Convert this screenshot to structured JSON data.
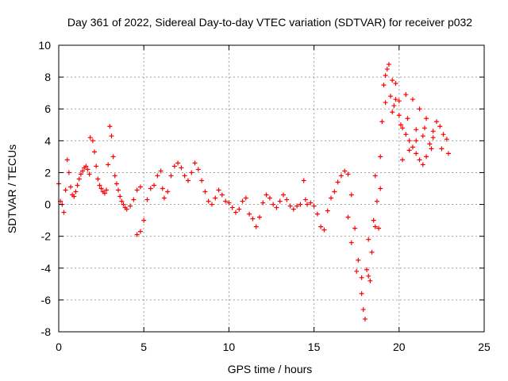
{
  "chart_data": {
    "type": "scatter",
    "title": "Day 361 of 2022, Sidereal Day-to-day VTEC variation (SDTVAR) for receiver p032",
    "xlabel": "GPS time / hours",
    "ylabel": "SDTVAR / TECUs",
    "xlim": [
      0,
      25
    ],
    "ylim": [
      -8,
      10
    ],
    "xticks": [
      "0",
      "5",
      "10",
      "15",
      "20",
      "25"
    ],
    "yticks": [
      "-8",
      "-6",
      "-4",
      "-2",
      "0",
      "2",
      "4",
      "6",
      "8",
      "10"
    ],
    "grid": true,
    "marker": "plus",
    "series": [
      {
        "name": "SDTVAR",
        "color": "#ff0000",
        "points": [
          [
            0.0,
            1.3
          ],
          [
            0.1,
            0.2
          ],
          [
            0.2,
            0.0
          ],
          [
            0.3,
            -0.5
          ],
          [
            0.4,
            0.9
          ],
          [
            0.5,
            2.8
          ],
          [
            0.6,
            2.0
          ],
          [
            0.7,
            1.1
          ],
          [
            0.8,
            0.6
          ],
          [
            0.9,
            0.5
          ],
          [
            1.0,
            0.8
          ],
          [
            1.1,
            1.2
          ],
          [
            1.2,
            1.6
          ],
          [
            1.3,
            1.9
          ],
          [
            1.4,
            2.1
          ],
          [
            1.5,
            2.3
          ],
          [
            1.6,
            2.4
          ],
          [
            1.7,
            2.2
          ],
          [
            1.8,
            1.9
          ],
          [
            1.85,
            4.2
          ],
          [
            2.0,
            4.0
          ],
          [
            2.1,
            3.3
          ],
          [
            2.2,
            2.4
          ],
          [
            2.3,
            1.6
          ],
          [
            2.4,
            1.2
          ],
          [
            2.5,
            1.0
          ],
          [
            2.6,
            0.8
          ],
          [
            2.7,
            0.7
          ],
          [
            2.8,
            0.9
          ],
          [
            2.9,
            2.5
          ],
          [
            3.0,
            4.9
          ],
          [
            3.1,
            4.3
          ],
          [
            3.2,
            3.0
          ],
          [
            3.3,
            1.8
          ],
          [
            3.4,
            1.3
          ],
          [
            3.5,
            0.9
          ],
          [
            3.6,
            0.5
          ],
          [
            3.7,
            0.2
          ],
          [
            3.8,
            0.0
          ],
          [
            3.9,
            -0.2
          ],
          [
            4.0,
            -0.3
          ],
          [
            4.2,
            -0.1
          ],
          [
            4.4,
            0.3
          ],
          [
            4.6,
            0.9
          ],
          [
            4.8,
            1.1
          ],
          [
            4.6,
            -1.9
          ],
          [
            4.8,
            -1.7
          ],
          [
            5.0,
            -1.0
          ],
          [
            5.2,
            0.3
          ],
          [
            5.4,
            1.0
          ],
          [
            5.6,
            1.2
          ],
          [
            5.8,
            1.8
          ],
          [
            6.0,
            2.1
          ],
          [
            6.1,
            1.0
          ],
          [
            6.2,
            0.4
          ],
          [
            6.4,
            0.8
          ],
          [
            6.6,
            1.8
          ],
          [
            6.8,
            2.4
          ],
          [
            7.0,
            2.6
          ],
          [
            7.2,
            2.3
          ],
          [
            7.4,
            1.8
          ],
          [
            7.6,
            1.5
          ],
          [
            7.8,
            2.0
          ],
          [
            8.0,
            2.6
          ],
          [
            8.2,
            2.2
          ],
          [
            8.4,
            1.5
          ],
          [
            8.6,
            0.8
          ],
          [
            8.8,
            0.2
          ],
          [
            9.0,
            0.0
          ],
          [
            9.2,
            0.4
          ],
          [
            9.4,
            0.9
          ],
          [
            9.6,
            0.6
          ],
          [
            9.8,
            0.2
          ],
          [
            10.0,
            0.1
          ],
          [
            10.2,
            -0.2
          ],
          [
            10.4,
            -0.5
          ],
          [
            10.6,
            -0.3
          ],
          [
            10.8,
            0.2
          ],
          [
            11.0,
            0.4
          ],
          [
            11.2,
            -0.6
          ],
          [
            11.4,
            -0.9
          ],
          [
            11.6,
            -1.4
          ],
          [
            11.8,
            -0.8
          ],
          [
            12.0,
            0.1
          ],
          [
            12.2,
            0.6
          ],
          [
            12.4,
            0.4
          ],
          [
            12.6,
            0.0
          ],
          [
            12.8,
            -0.2
          ],
          [
            13.0,
            0.2
          ],
          [
            13.2,
            0.6
          ],
          [
            13.4,
            0.3
          ],
          [
            13.6,
            -0.1
          ],
          [
            13.8,
            -0.3
          ],
          [
            14.0,
            -0.1
          ],
          [
            14.2,
            0.0
          ],
          [
            14.4,
            1.5
          ],
          [
            14.5,
            0.3
          ],
          [
            14.6,
            0.0
          ],
          [
            14.8,
            0.1
          ],
          [
            15.0,
            -0.1
          ],
          [
            15.2,
            -0.6
          ],
          [
            15.4,
            -1.4
          ],
          [
            15.6,
            -1.6
          ],
          [
            15.8,
            -0.4
          ],
          [
            16.0,
            0.4
          ],
          [
            16.2,
            0.8
          ],
          [
            16.4,
            1.4
          ],
          [
            16.6,
            1.8
          ],
          [
            16.8,
            2.1
          ],
          [
            17.0,
            1.9
          ],
          [
            17.2,
            0.6
          ],
          [
            17.4,
            -1.5
          ],
          [
            17.6,
            -3.5
          ],
          [
            17.8,
            -5.6
          ],
          [
            17.9,
            -6.6
          ],
          [
            18.0,
            -7.2
          ],
          [
            18.1,
            -4.1
          ],
          [
            18.2,
            -4.5
          ],
          [
            18.3,
            -4.8
          ],
          [
            18.4,
            -3.0
          ],
          [
            18.5,
            -1.0
          ],
          [
            18.6,
            1.8
          ],
          [
            18.7,
            0.2
          ],
          [
            18.8,
            -1.5
          ],
          [
            18.9,
            3.0
          ],
          [
            19.0,
            5.2
          ],
          [
            19.1,
            7.5
          ],
          [
            19.2,
            8.1
          ],
          [
            19.3,
            8.5
          ],
          [
            19.4,
            8.8
          ],
          [
            19.6,
            7.8
          ],
          [
            19.8,
            6.6
          ],
          [
            20.0,
            5.6
          ],
          [
            20.2,
            4.8
          ],
          [
            20.4,
            4.4
          ],
          [
            20.6,
            4.0
          ],
          [
            20.8,
            3.6
          ],
          [
            21.0,
            3.2
          ],
          [
            21.2,
            2.8
          ],
          [
            21.4,
            2.5
          ],
          [
            21.6,
            3.0
          ],
          [
            21.8,
            3.8
          ],
          [
            22.0,
            4.6
          ],
          [
            22.2,
            5.2
          ],
          [
            22.4,
            4.9
          ],
          [
            22.6,
            4.4
          ],
          [
            22.8,
            4.1
          ],
          [
            20.2,
            2.8
          ],
          [
            20.6,
            3.4
          ],
          [
            21.0,
            4.0
          ],
          [
            21.5,
            4.8
          ],
          [
            22.0,
            4.2
          ],
          [
            22.5,
            3.5
          ],
          [
            22.9,
            3.2
          ],
          [
            19.7,
            6.2
          ],
          [
            20.0,
            6.5
          ],
          [
            20.4,
            6.9
          ],
          [
            20.8,
            6.6
          ],
          [
            21.2,
            6.0
          ],
          [
            21.6,
            5.4
          ],
          [
            19.6,
            5.8
          ],
          [
            20.1,
            5.0
          ],
          [
            20.5,
            5.4
          ],
          [
            21.0,
            4.7
          ],
          [
            21.4,
            4.3
          ],
          [
            21.9,
            3.5
          ],
          [
            17.0,
            -0.8
          ],
          [
            17.2,
            -2.4
          ],
          [
            17.5,
            -4.2
          ],
          [
            18.2,
            -2.2
          ],
          [
            17.8,
            -4.6
          ],
          [
            18.6,
            -1.4
          ],
          [
            18.9,
            1.0
          ],
          [
            19.2,
            6.4
          ],
          [
            19.5,
            6.8
          ],
          [
            19.8,
            7.6
          ]
        ]
      }
    ]
  }
}
